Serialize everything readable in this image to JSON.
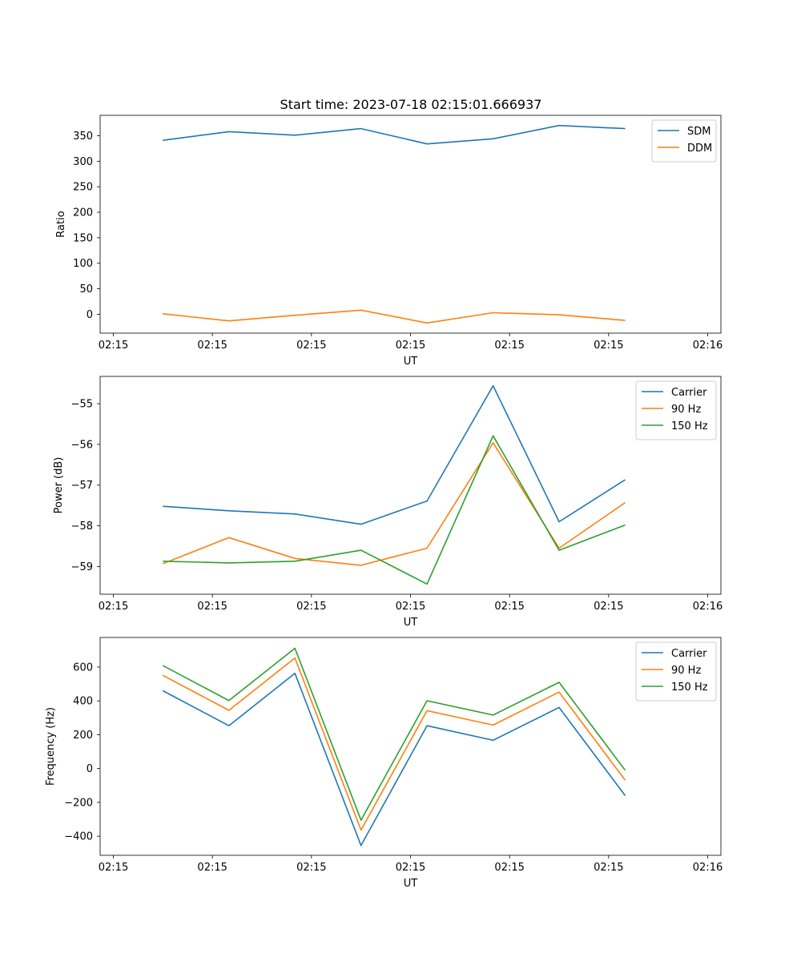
{
  "figure": {
    "title": "Start time: 2023-07-18 02:15:01.666937"
  },
  "chart_data": [
    {
      "type": "line",
      "title": "Start time: 2023-07-18 02:15:01.666937",
      "xlabel": "UT",
      "ylabel": "Ratio",
      "x_tick_labels": [
        "02:15",
        "02:15",
        "02:15",
        "02:15",
        "02:15",
        "02:15",
        "02:16"
      ],
      "xlim": [
        -0.1,
        4.6
      ],
      "x": [
        0.375,
        0.875,
        1.375,
        1.875,
        2.375,
        2.875,
        3.375,
        3.875
      ],
      "y_ticks": [
        0,
        50,
        100,
        150,
        200,
        250,
        300,
        350
      ],
      "ylim": [
        -37,
        390
      ],
      "legend": "top-right",
      "series": [
        {
          "name": "SDM",
          "color": "#1f77b4",
          "values": [
            341,
            358,
            351,
            364,
            334,
            344,
            370,
            364
          ]
        },
        {
          "name": "DDM",
          "color": "#ff7f0e",
          "values": [
            1,
            -13,
            -2,
            8,
            -17,
            3,
            -1,
            -12
          ]
        }
      ]
    },
    {
      "type": "line",
      "xlabel": "UT",
      "ylabel": "Power (dB)",
      "x_tick_labels": [
        "02:15",
        "02:15",
        "02:15",
        "02:15",
        "02:15",
        "02:15",
        "02:16"
      ],
      "xlim": [
        -0.1,
        4.6
      ],
      "x": [
        0.375,
        0.875,
        1.375,
        1.875,
        2.375,
        2.875,
        3.375,
        3.875
      ],
      "y_ticks": [
        -59,
        -58,
        -57,
        -56,
        -55
      ],
      "ylim": [
        -59.68,
        -54.33
      ],
      "legend": "top-right",
      "series": [
        {
          "name": "Carrier",
          "color": "#1f77b4",
          "values": [
            -57.52,
            -57.63,
            -57.71,
            -57.96,
            -57.39,
            -54.56,
            -57.9,
            -56.87
          ]
        },
        {
          "name": "90 Hz",
          "color": "#ff7f0e",
          "values": [
            -58.93,
            -58.29,
            -58.8,
            -58.97,
            -58.55,
            -55.96,
            -58.55,
            -57.43
          ]
        },
        {
          "name": "150 Hz",
          "color": "#2ca02c",
          "values": [
            -58.87,
            -58.91,
            -58.87,
            -58.6,
            -59.43,
            -55.79,
            -58.6,
            -57.98
          ]
        }
      ]
    },
    {
      "type": "line",
      "xlabel": "UT",
      "ylabel": "Frequency (Hz)",
      "x_tick_labels": [
        "02:15",
        "02:15",
        "02:15",
        "02:15",
        "02:15",
        "02:15",
        "02:16"
      ],
      "xlim": [
        -0.1,
        4.6
      ],
      "x": [
        0.375,
        0.875,
        1.375,
        1.875,
        2.375,
        2.875,
        3.375,
        3.875
      ],
      "y_ticks": [
        -400,
        -200,
        0,
        200,
        400,
        600
      ],
      "ylim": [
        -513,
        775
      ],
      "legend": "top-right",
      "series": [
        {
          "name": "Carrier",
          "color": "#1f77b4",
          "values": [
            460,
            253,
            563,
            -455,
            253,
            167,
            361,
            -160
          ]
        },
        {
          "name": "90 Hz",
          "color": "#ff7f0e",
          "values": [
            551,
            344,
            654,
            -364,
            342,
            257,
            452,
            -69
          ]
        },
        {
          "name": "150 Hz",
          "color": "#2ca02c",
          "values": [
            609,
            402,
            711,
            -305,
            401,
            316,
            510,
            -10
          ]
        }
      ]
    }
  ]
}
